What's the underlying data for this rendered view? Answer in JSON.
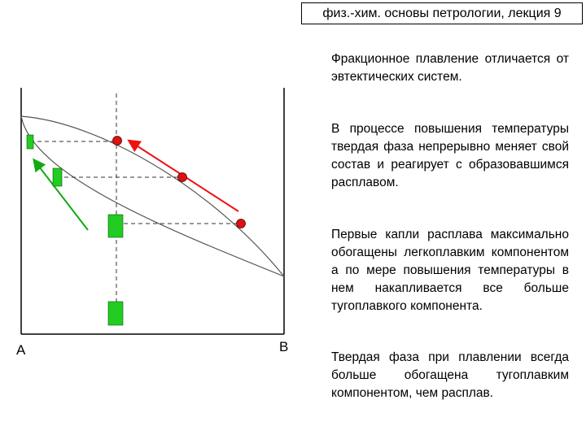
{
  "header": {
    "title": "физ.-хим. основы петрологии, лекция 9"
  },
  "diagram": {
    "label_a": "A",
    "label_b": "B",
    "colors": {
      "solid_phase": "#22cc22",
      "liquid_point": "#dd1111",
      "liquid_arrow": "#ee1111",
      "solid_arrow": "#11aa11",
      "curve": "#555555"
    }
  },
  "text": {
    "p1": "Фракционное плавление отличается от эвтектических систем.",
    "p2": "В процессе повышения температуры твердая фаза непрерывно меняет свой состав и реагирует с образовавшимся расплавом.",
    "p3": "Первые капли расплава максимально обогащены легкоплавким компонентом а по мере повышения температуры в нем накапливается все больше тугоплавкого компонента.",
    "p4": "Твердая фаза при плавлении всегда больше обогащена тугоплавким компонентом, чем расплав."
  }
}
